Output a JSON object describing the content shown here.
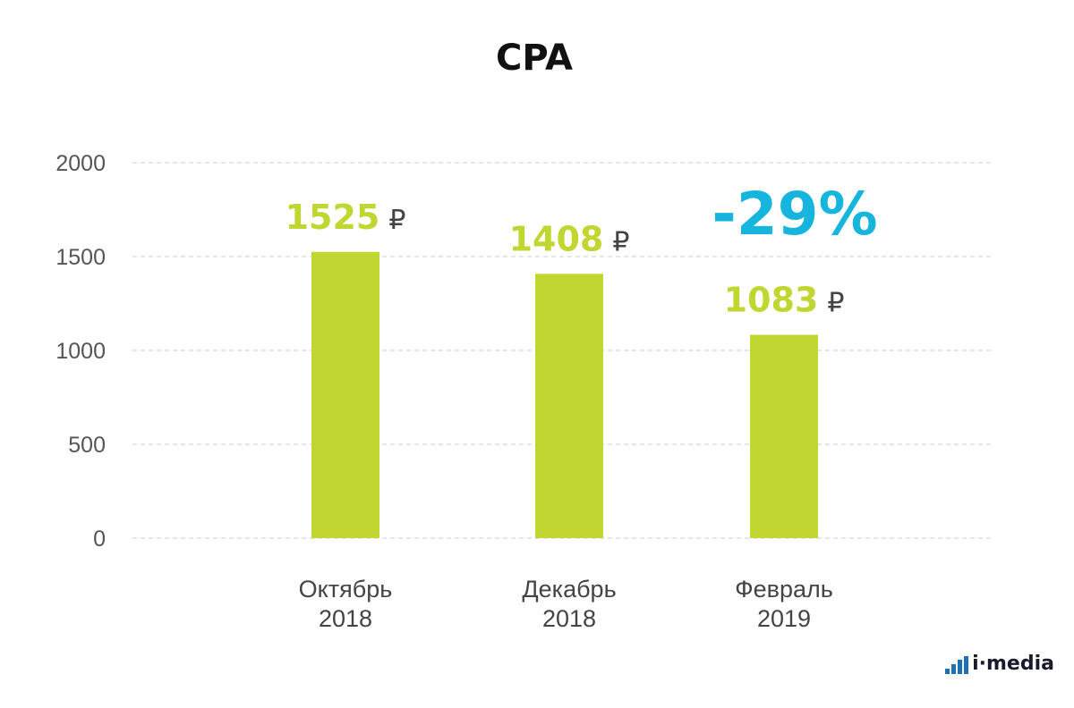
{
  "chart_data": {
    "type": "bar",
    "title": "CPA",
    "categories": [
      [
        "Октябрь",
        "2018"
      ],
      [
        "Декабрь",
        "2018"
      ],
      [
        "Февраль",
        "2019"
      ]
    ],
    "values": [
      1525,
      1408,
      1083
    ],
    "value_labels": [
      "1525",
      "1408",
      "1083"
    ],
    "value_unit": "₽",
    "yticks": [
      0,
      500,
      1000,
      1500,
      2000
    ],
    "ylim": [
      0,
      2000
    ],
    "grid": true,
    "xlabel": "",
    "ylabel": "",
    "annotation": "-29%",
    "bar_color": "#c2d631",
    "annotation_color": "#16b5dd"
  },
  "brand": {
    "logo_text": "i·media",
    "logo_color": "#1f6fb5"
  }
}
